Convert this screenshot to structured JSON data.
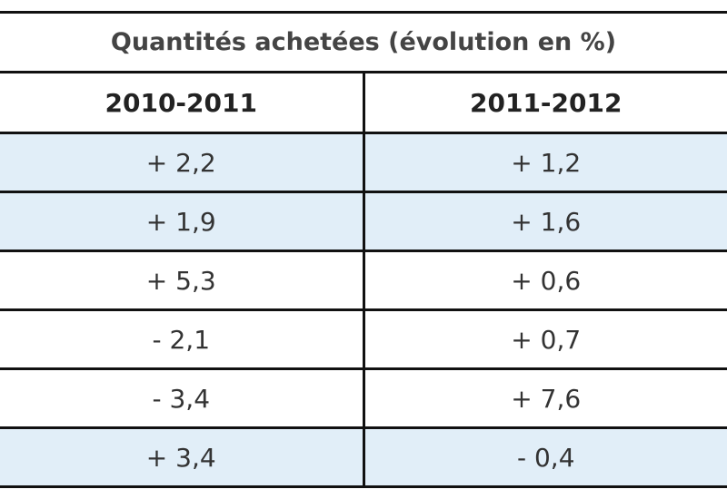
{
  "table": {
    "title": "Quantités achetées (évolution en %)",
    "header": [
      "2010-2011",
      "2011-2012"
    ],
    "rows": [
      [
        "+ 2,2",
        "+ 1,2"
      ],
      [
        "+ 1,9",
        "+ 1,6"
      ],
      [
        "+ 5,3",
        "+ 0,6"
      ],
      [
        "- 2,1",
        "+ 0,7"
      ],
      [
        "- 3,4",
        "+ 7,6"
      ],
      [
        "+ 3,4",
        "- 0,4"
      ]
    ]
  }
}
